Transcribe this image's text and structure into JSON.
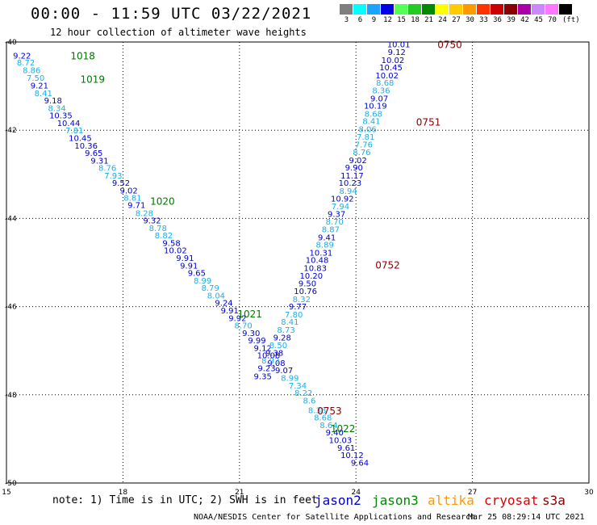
{
  "header": {
    "title": "00:00 - 11:59 UTC 03/22/2021",
    "subtitle": "12 hour collection of altimeter wave heights"
  },
  "legend": {
    "unit_label": "(ft)",
    "bins": [
      {
        "color": "#7f7f7f",
        "label": "3"
      },
      {
        "color": "#00ffff",
        "label": "6"
      },
      {
        "color": "#1aa3ff",
        "label": "9"
      },
      {
        "color": "#0000e6",
        "label": "12"
      },
      {
        "color": "#55ff55",
        "label": "15"
      },
      {
        "color": "#22cc22",
        "label": "18"
      },
      {
        "color": "#008800",
        "label": "21"
      },
      {
        "color": "#ffff00",
        "label": "24"
      },
      {
        "color": "#ffcc00",
        "label": "27"
      },
      {
        "color": "#ff9900",
        "label": "30"
      },
      {
        "color": "#ff3300",
        "label": "33"
      },
      {
        "color": "#cc0000",
        "label": "36"
      },
      {
        "color": "#880000",
        "label": "39"
      },
      {
        "color": "#aa00aa",
        "label": "42"
      },
      {
        "color": "#cc88ff",
        "label": "45"
      },
      {
        "color": "#ff77ff",
        "label": "70"
      },
      {
        "color": "#000000",
        "label": ""
      }
    ]
  },
  "map": {
    "lon_labels": [
      "15",
      "18",
      "21",
      "24",
      "27",
      "30"
    ],
    "lat_labels": [
      "-40",
      "-42",
      "-44",
      "-46",
      "-48",
      "-50"
    ],
    "lon_range": [
      15,
      30
    ],
    "lat_range": [
      -40,
      -50
    ]
  },
  "track_colors": {
    "dark": "#0000cc",
    "light": "#1ab0e8"
  },
  "tracks": [
    {
      "name": "jason3-pass",
      "times": [
        {
          "label": "1018",
          "lon": 16.65,
          "lat": -40.3,
          "color": "#007700"
        },
        {
          "label": "1019",
          "lon": 16.9,
          "lat": -40.83,
          "color": "#007700"
        },
        {
          "label": "1020",
          "lon": 18.7,
          "lat": -43.6,
          "color": "#007700"
        },
        {
          "label": "1021",
          "lon": 20.95,
          "lat": -46.15,
          "color": "#007700"
        },
        {
          "label": "1022",
          "lon": 23.35,
          "lat": -48.75,
          "color": "#007700"
        }
      ],
      "values": [
        {
          "v": "9.22",
          "lon": 15.4,
          "lat": -40.3,
          "shade": "dark"
        },
        {
          "v": "8.72",
          "lon": 15.5,
          "lat": -40.46,
          "shade": "light"
        },
        {
          "v": "8.86",
          "lon": 15.65,
          "lat": -40.63,
          "shade": "light"
        },
        {
          "v": "7.50",
          "lon": 15.75,
          "lat": -40.81,
          "shade": "light"
        },
        {
          "v": "9.21",
          "lon": 15.85,
          "lat": -40.98,
          "shade": "dark"
        },
        {
          "v": "8.41",
          "lon": 15.95,
          "lat": -41.15,
          "shade": "light"
        },
        {
          "v": "9.18",
          "lon": 16.2,
          "lat": -41.32,
          "shade": "dark"
        },
        {
          "v": "8.34",
          "lon": 16.3,
          "lat": -41.49,
          "shade": "light"
        },
        {
          "v": "10.35",
          "lon": 16.4,
          "lat": -41.66,
          "shade": "dark"
        },
        {
          "v": "10.44",
          "lon": 16.6,
          "lat": -41.83,
          "shade": "dark"
        },
        {
          "v": "7.81",
          "lon": 16.75,
          "lat": -42.0,
          "shade": "light"
        },
        {
          "v": "10.45",
          "lon": 16.9,
          "lat": -42.17,
          "shade": "dark"
        },
        {
          "v": "10.36",
          "lon": 17.05,
          "lat": -42.34,
          "shade": "dark"
        },
        {
          "v": "9.65",
          "lon": 17.25,
          "lat": -42.51,
          "shade": "dark"
        },
        {
          "v": "9.31",
          "lon": 17.4,
          "lat": -42.68,
          "shade": "dark"
        },
        {
          "v": "8.76",
          "lon": 17.6,
          "lat": -42.85,
          "shade": "light"
        },
        {
          "v": "7.93",
          "lon": 17.75,
          "lat": -43.02,
          "shade": "light"
        },
        {
          "v": "9.52",
          "lon": 17.95,
          "lat": -43.19,
          "shade": "dark"
        },
        {
          "v": "9.02",
          "lon": 18.15,
          "lat": -43.36,
          "shade": "dark"
        },
        {
          "v": "8.81",
          "lon": 18.25,
          "lat": -43.53,
          "shade": "light"
        },
        {
          "v": "9.71",
          "lon": 18.35,
          "lat": -43.69,
          "shade": "dark"
        },
        {
          "v": "8.28",
          "lon": 18.55,
          "lat": -43.87,
          "shade": "light"
        },
        {
          "v": "9.32",
          "lon": 18.75,
          "lat": -44.04,
          "shade": "dark"
        },
        {
          "v": "8.78",
          "lon": 18.9,
          "lat": -44.21,
          "shade": "light"
        },
        {
          "v": "8.82",
          "lon": 19.05,
          "lat": -44.38,
          "shade": "light"
        },
        {
          "v": "9.58",
          "lon": 19.25,
          "lat": -44.55,
          "shade": "dark"
        },
        {
          "v": "10.02",
          "lon": 19.35,
          "lat": -44.72,
          "shade": "dark"
        },
        {
          "v": "9.91",
          "lon": 19.6,
          "lat": -44.89,
          "shade": "dark"
        },
        {
          "v": "9.91",
          "lon": 19.7,
          "lat": -45.06,
          "shade": "dark"
        },
        {
          "v": "9.65",
          "lon": 19.9,
          "lat": -45.23,
          "shade": "dark"
        },
        {
          "v": "8.99",
          "lon": 20.05,
          "lat": -45.4,
          "shade": "light"
        },
        {
          "v": "8.79",
          "lon": 20.25,
          "lat": -45.57,
          "shade": "light"
        },
        {
          "v": "8.04",
          "lon": 20.4,
          "lat": -45.74,
          "shade": "light"
        },
        {
          "v": "9.24",
          "lon": 20.6,
          "lat": -45.91,
          "shade": "dark"
        },
        {
          "v": "9.91",
          "lon": 20.75,
          "lat": -46.08,
          "shade": "dark"
        },
        {
          "v": "9.92",
          "lon": 20.95,
          "lat": -46.25,
          "shade": "dark"
        },
        {
          "v": "8.70",
          "lon": 21.1,
          "lat": -46.42,
          "shade": "light"
        },
        {
          "v": "9.30",
          "lon": 21.3,
          "lat": -46.59,
          "shade": "dark"
        },
        {
          "v": "9.99",
          "lon": 21.45,
          "lat": -46.76,
          "shade": "dark"
        },
        {
          "v": "9.12",
          "lon": 21.6,
          "lat": -46.93,
          "shade": "dark"
        },
        {
          "v": "10.08",
          "lon": 21.75,
          "lat": -47.1,
          "shade": "dark"
        },
        {
          "v": "9.08",
          "lon": 21.95,
          "lat": -47.27,
          "shade": "dark"
        },
        {
          "v": "9.07",
          "lon": 22.15,
          "lat": -47.44,
          "shade": "dark"
        },
        {
          "v": "8.99",
          "lon": 22.3,
          "lat": -47.61,
          "shade": "light"
        },
        {
          "v": "7.34",
          "lon": 22.5,
          "lat": -47.78,
          "shade": "light"
        },
        {
          "v": "8.22",
          "lon": 22.65,
          "lat": -47.95,
          "shade": "light"
        },
        {
          "v": "8.6",
          "lon": 22.8,
          "lat": -48.12,
          "shade": "light"
        },
        {
          "v": "8.38",
          "lon": 23.0,
          "lat": -48.34,
          "shade": "light"
        },
        {
          "v": "8.68",
          "lon": 23.15,
          "lat": -48.51,
          "shade": "light"
        },
        {
          "v": "8.64",
          "lon": 23.3,
          "lat": -48.68,
          "shade": "light"
        },
        {
          "v": "9.40",
          "lon": 23.45,
          "lat": -48.85,
          "shade": "dark"
        },
        {
          "v": "10.03",
          "lon": 23.6,
          "lat": -49.02,
          "shade": "dark"
        },
        {
          "v": "9.61",
          "lon": 23.75,
          "lat": -49.19,
          "shade": "dark"
        },
        {
          "v": "10.12",
          "lon": 23.9,
          "lat": -49.36,
          "shade": "dark"
        },
        {
          "v": "9.64",
          "lon": 24.1,
          "lat": -49.53,
          "shade": "dark"
        }
      ]
    },
    {
      "name": "s3a-pass",
      "times": [
        {
          "label": "0750",
          "lon": 26.1,
          "lat": -40.05,
          "color": "#880000"
        },
        {
          "label": "0751",
          "lon": 25.55,
          "lat": -41.8,
          "color": "#880000"
        },
        {
          "label": "0752",
          "lon": 24.5,
          "lat": -45.05,
          "color": "#880000"
        },
        {
          "label": "0753",
          "lon": 23.0,
          "lat": -48.35,
          "color": "#880000"
        }
      ],
      "values": [
        {
          "v": "10.01",
          "lon": 25.1,
          "lat": -40.05,
          "shade": "dark"
        },
        {
          "v": "9.12",
          "lon": 25.05,
          "lat": -40.22,
          "shade": "dark"
        },
        {
          "v": "10.02",
          "lon": 24.95,
          "lat": -40.4,
          "shade": "dark"
        },
        {
          "v": "10.45",
          "lon": 24.9,
          "lat": -40.57,
          "shade": "dark"
        },
        {
          "v": "10.02",
          "lon": 24.8,
          "lat": -40.75,
          "shade": "dark"
        },
        {
          "v": "8.68",
          "lon": 24.75,
          "lat": -40.92,
          "shade": "light"
        },
        {
          "v": "8.36",
          "lon": 24.65,
          "lat": -41.09,
          "shade": "light"
        },
        {
          "v": "9.07",
          "lon": 24.6,
          "lat": -41.27,
          "shade": "dark"
        },
        {
          "v": "10.19",
          "lon": 24.5,
          "lat": -41.44,
          "shade": "dark"
        },
        {
          "v": "8.68",
          "lon": 24.45,
          "lat": -41.62,
          "shade": "light"
        },
        {
          "v": "8.41",
          "lon": 24.4,
          "lat": -41.79,
          "shade": "light"
        },
        {
          "v": "8.06",
          "lon": 24.3,
          "lat": -41.97,
          "shade": "light"
        },
        {
          "v": "7.81",
          "lon": 24.25,
          "lat": -42.14,
          "shade": "light"
        },
        {
          "v": "7.76",
          "lon": 24.2,
          "lat": -42.32,
          "shade": "light"
        },
        {
          "v": "8.76",
          "lon": 24.15,
          "lat": -42.49,
          "shade": "light"
        },
        {
          "v": "9.02",
          "lon": 24.05,
          "lat": -42.67,
          "shade": "dark"
        },
        {
          "v": "9.90",
          "lon": 23.95,
          "lat": -42.84,
          "shade": "dark"
        },
        {
          "v": "11.17",
          "lon": 23.9,
          "lat": -43.02,
          "shade": "dark"
        },
        {
          "v": "10.23",
          "lon": 23.85,
          "lat": -43.19,
          "shade": "dark"
        },
        {
          "v": "8.94",
          "lon": 23.8,
          "lat": -43.37,
          "shade": "light"
        },
        {
          "v": "10.92",
          "lon": 23.65,
          "lat": -43.54,
          "shade": "dark"
        },
        {
          "v": "7.94",
          "lon": 23.6,
          "lat": -43.72,
          "shade": "light"
        },
        {
          "v": "9.37",
          "lon": 23.5,
          "lat": -43.89,
          "shade": "dark"
        },
        {
          "v": "8.70",
          "lon": 23.45,
          "lat": -44.07,
          "shade": "light"
        },
        {
          "v": "8.87",
          "lon": 23.35,
          "lat": -44.24,
          "shade": "light"
        },
        {
          "v": "9.41",
          "lon": 23.25,
          "lat": -44.42,
          "shade": "dark"
        },
        {
          "v": "8.89",
          "lon": 23.2,
          "lat": -44.59,
          "shade": "light"
        },
        {
          "v": "10.31",
          "lon": 23.1,
          "lat": -44.77,
          "shade": "dark"
        },
        {
          "v": "10.48",
          "lon": 23.0,
          "lat": -44.94,
          "shade": "dark"
        },
        {
          "v": "10.83",
          "lon": 22.95,
          "lat": -45.12,
          "shade": "dark"
        },
        {
          "v": "10.20",
          "lon": 22.85,
          "lat": -45.29,
          "shade": "dark"
        },
        {
          "v": "9.50",
          "lon": 22.75,
          "lat": -45.47,
          "shade": "dark"
        },
        {
          "v": "10.76",
          "lon": 22.7,
          "lat": -45.64,
          "shade": "dark"
        },
        {
          "v": "8.32",
          "lon": 22.6,
          "lat": -45.82,
          "shade": "light"
        },
        {
          "v": "9.77",
          "lon": 22.5,
          "lat": -45.99,
          "shade": "dark"
        },
        {
          "v": "7.80",
          "lon": 22.4,
          "lat": -46.17,
          "shade": "light"
        },
        {
          "v": "8.41",
          "lon": 22.3,
          "lat": -46.34,
          "shade": "light"
        },
        {
          "v": "8.73",
          "lon": 22.2,
          "lat": -46.52,
          "shade": "light"
        },
        {
          "v": "9.28",
          "lon": 22.1,
          "lat": -46.69,
          "shade": "dark"
        },
        {
          "v": "8.50",
          "lon": 22.0,
          "lat": -46.87,
          "shade": "light"
        },
        {
          "v": "9.38",
          "lon": 21.9,
          "lat": -47.04,
          "shade": "dark"
        },
        {
          "v": "8.92",
          "lon": 21.8,
          "lat": -47.22,
          "shade": "light"
        },
        {
          "v": "9.23",
          "lon": 21.7,
          "lat": -47.39,
          "shade": "dark"
        },
        {
          "v": "9.35",
          "lon": 21.6,
          "lat": -47.57,
          "shade": "dark"
        }
      ]
    }
  ],
  "footer": {
    "note": "note:  1) Time is in UTC; 2) SWH is in feet",
    "satellites": [
      {
        "name": "jason2",
        "color": "#0000cc"
      },
      {
        "name": "jason3",
        "color": "#008800"
      },
      {
        "name": "altika",
        "color": "#ff9900"
      },
      {
        "name": "cryosat",
        "color": "#dd0000"
      },
      {
        "name": "s3a",
        "color": "#880000"
      }
    ],
    "credit": "NOAA/NESDIS Center for Satellite Applications and Research",
    "timestamp": "Mar 25 08:29:14 UTC 2021"
  }
}
